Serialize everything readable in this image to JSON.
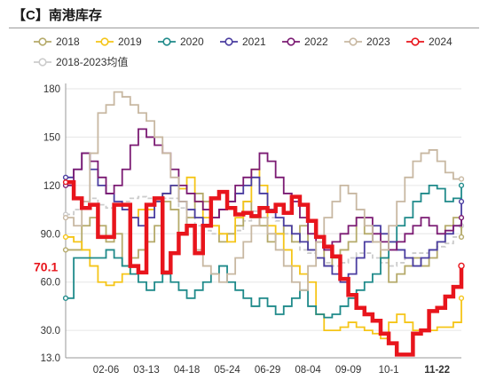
{
  "header": {
    "title": "【C】南港库存"
  },
  "chart_data": {
    "type": "line",
    "title": "【C】南港库存",
    "xlabel": "",
    "ylabel": "",
    "ylim": [
      13,
      190
    ],
    "y_ticks": [
      "13.0",
      "30.0",
      "60.0",
      "90.0",
      "120",
      "150",
      "180"
    ],
    "y_tick_values": [
      13,
      30,
      60,
      90,
      120,
      150,
      180
    ],
    "x_ticks": [
      "02-06",
      "03-13",
      "04-18",
      "05-24",
      "06-29",
      "08-04",
      "09-09",
      "10-1",
      "11-22"
    ],
    "x_tick_weeks": [
      5,
      10,
      15,
      20,
      25,
      30,
      35,
      40,
      46
    ],
    "highlight_x_tick": "11-22",
    "latest_value": {
      "label": "70.1",
      "value": 70.1
    },
    "grid": "horizontal",
    "legend_position": "top",
    "series": [
      {
        "name": "2018",
        "color": "#b5aa6a",
        "dashed": false,
        "values": [
          80,
          80,
          95,
          100,
          95,
          85,
          90,
          70,
          75,
          80,
          85,
          95,
          110,
          105,
          90,
          100,
          115,
          110,
          95,
          85,
          90,
          95,
          110,
          100,
          95,
          85,
          90,
          95,
          85,
          95,
          80,
          85,
          70,
          75,
          80,
          85,
          100,
          90,
          85,
          75,
          60,
          65,
          70,
          75,
          70,
          75,
          85,
          95,
          100,
          88
        ]
      },
      {
        "name": "2019",
        "color": "#f5c518",
        "dashed": false,
        "values": [
          88,
          85,
          80,
          70,
          60,
          58,
          60,
          65,
          100,
          105,
          105,
          110,
          115,
          120,
          118,
          125,
          110,
          100,
          95,
          90,
          85,
          100,
          110,
          130,
          120,
          95,
          90,
          80,
          70,
          65,
          60,
          40,
          30,
          30,
          32,
          35,
          32,
          30,
          28,
          25,
          35,
          40,
          35,
          30,
          30,
          30,
          32,
          32,
          35,
          50
        ]
      },
      {
        "name": "2020",
        "color": "#1f8a8a",
        "dashed": false,
        "values": [
          50,
          75,
          75,
          75,
          75,
          80,
          75,
          70,
          65,
          60,
          55,
          60,
          65,
          60,
          55,
          50,
          55,
          60,
          65,
          70,
          60,
          55,
          50,
          45,
          50,
          45,
          40,
          45,
          50,
          55,
          45,
          40,
          38,
          40,
          45,
          50,
          55,
          60,
          65,
          75,
          85,
          95,
          100,
          110,
          115,
          120,
          118,
          110,
          112,
          120
        ]
      },
      {
        "name": "2021",
        "color": "#4a3da0",
        "dashed": false,
        "values": [
          125,
          130,
          140,
          130,
          120,
          115,
          110,
          105,
          100,
          95,
          100,
          110,
          115,
          120,
          110,
          105,
          100,
          95,
          100,
          105,
          110,
          115,
          120,
          125,
          115,
          105,
          100,
          95,
          90,
          85,
          80,
          75,
          70,
          65,
          60,
          65,
          75,
          85,
          95,
          90,
          85,
          80,
          75,
          70,
          75,
          80,
          85,
          90,
          95,
          110
        ]
      },
      {
        "name": "2022",
        "color": "#7b1b73",
        "dashed": false,
        "values": [
          120,
          130,
          140,
          135,
          125,
          115,
          120,
          130,
          145,
          155,
          150,
          145,
          140,
          130,
          120,
          115,
          110,
          105,
          100,
          105,
          110,
          120,
          125,
          130,
          140,
          135,
          125,
          115,
          110,
          100,
          90,
          85,
          80,
          85,
          90,
          95,
          100,
          100,
          90,
          85,
          80,
          85,
          90,
          95,
          100,
          95,
          90,
          92,
          95,
          100
        ]
      },
      {
        "name": "2023",
        "color": "#c8b8a2",
        "dashed": false,
        "values": [
          100,
          95,
          110,
          140,
          165,
          170,
          178,
          175,
          170,
          165,
          160,
          150,
          140,
          125,
          110,
          95,
          80,
          70,
          65,
          60,
          65,
          75,
          85,
          95,
          100,
          90,
          80,
          70,
          60,
          55,
          70,
          85,
          100,
          110,
          120,
          115,
          105,
          95,
          85,
          80,
          95,
          110,
          125,
          135,
          140,
          142,
          135,
          128,
          124,
          124
        ]
      },
      {
        "name": "2024",
        "color": "#e8151c",
        "dashed": false,
        "bold": true,
        "values": [
          122,
          112,
          106,
          108,
          88,
          88,
          108,
          108,
          70,
          66,
          108,
          112,
          66,
          78,
          90,
          95,
          78,
          95,
          112,
          116,
          106,
          102,
          103,
          101,
          106,
          104,
          108,
          103,
          113,
          108,
          98,
          88,
          82,
          76,
          62,
          52,
          44,
          40,
          36,
          28,
          22,
          15,
          15,
          28,
          30,
          42,
          44,
          51,
          57,
          70.1
        ]
      },
      {
        "name": "2018-2023均值",
        "color": "#cccccc",
        "dashed": true,
        "values": [
          102,
          105,
          110,
          112,
          108,
          106,
          108,
          110,
          112,
          113,
          112,
          112,
          112,
          112,
          106,
          100,
          95,
          92,
          90,
          90,
          90,
          92,
          98,
          104,
          105,
          100,
          98,
          90,
          85,
          80,
          78,
          75,
          72,
          70,
          72,
          75,
          78,
          78,
          75,
          72,
          70,
          72,
          75,
          78,
          78,
          80,
          82,
          84,
          88,
          95
        ]
      }
    ]
  }
}
